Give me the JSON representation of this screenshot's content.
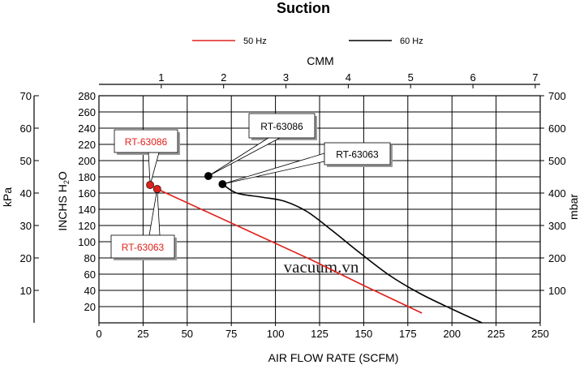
{
  "chart_data": {
    "type": "line",
    "title": "Suction",
    "xlabel": "AIR FLOW RATE (SCFM)",
    "x_ticks": [
      0,
      25,
      50,
      75,
      100,
      125,
      150,
      175,
      200,
      225,
      250
    ],
    "xlim": [
      0,
      250
    ],
    "x2label": "CMM",
    "x2_ticks": [
      1,
      2,
      3,
      4,
      5,
      6,
      7
    ],
    "ylabel_main": "INCHS H",
    "ylabel_main_sub": "2",
    "ylabel_main_end": "O",
    "y_ticks": [
      20,
      40,
      60,
      80,
      100,
      120,
      140,
      160,
      180,
      200,
      220,
      240,
      260,
      280
    ],
    "ylim": [
      0,
      280
    ],
    "y_left_label": "kPa",
    "y_left_ticks": [
      10,
      20,
      30,
      40,
      50,
      60,
      70
    ],
    "y_right_label": "mbar",
    "y_right_ticks": [
      100,
      200,
      300,
      400,
      500,
      600,
      700
    ],
    "grid": true,
    "legend_position": "top",
    "series": [
      {
        "name": "50 Hz",
        "color": "#e0201b",
        "x": [
          33,
          60,
          90,
          120,
          150,
          183
        ],
        "y": [
          165,
          138,
          108,
          78,
          46,
          12
        ]
      },
      {
        "name": "60 Hz",
        "color": "#000000",
        "x": [
          70,
          78,
          92,
          105,
          118,
          132,
          148,
          165,
          182,
          200,
          217
        ],
        "y": [
          171,
          160,
          155,
          150,
          137,
          114,
          86,
          58,
          36,
          17,
          0
        ]
      }
    ],
    "points": [
      {
        "label": "RT-63086",
        "series": 0,
        "x": 29,
        "y": 170
      },
      {
        "label": "RT-63063",
        "series": 0,
        "x": 33,
        "y": 165
      },
      {
        "label": "RT-63086",
        "series": 1,
        "x": 62,
        "y": 181
      },
      {
        "label": "RT-63063",
        "series": 1,
        "x": 70,
        "y": 171
      }
    ],
    "watermark": "vacuum.vn"
  }
}
